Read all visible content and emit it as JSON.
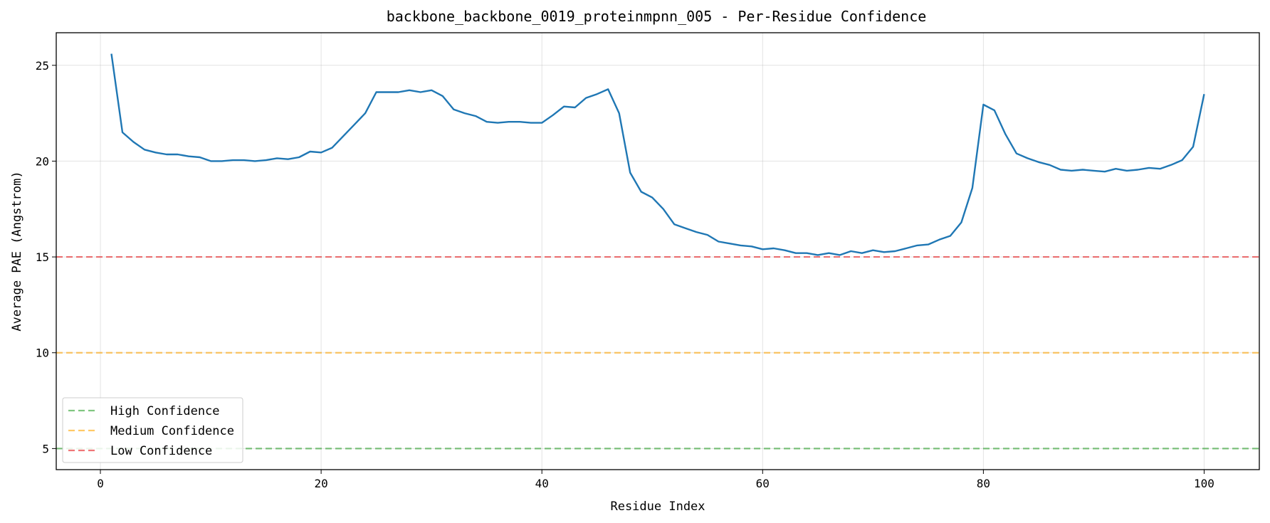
{
  "chart_data": {
    "type": "line",
    "title": "backbone_backbone_0019_proteinmpnn_005 - Per-Residue Confidence",
    "xlabel": "Residue Index",
    "ylabel": "Average PAE (Angstrom)",
    "xlim": [
      -4,
      105
    ],
    "ylim": [
      3.9,
      26.7
    ],
    "xticks": [
      0,
      20,
      40,
      60,
      80,
      100
    ],
    "yticks": [
      5,
      10,
      15,
      20,
      25
    ],
    "grid": true,
    "legend_position": "lower-left",
    "series": [
      {
        "color": "#1f77b4",
        "x": [
          1,
          2,
          3,
          4,
          5,
          6,
          7,
          8,
          9,
          10,
          11,
          12,
          13,
          14,
          15,
          16,
          17,
          18,
          19,
          20,
          21,
          22,
          23,
          24,
          25,
          26,
          27,
          28,
          29,
          30,
          31,
          32,
          33,
          34,
          35,
          36,
          37,
          38,
          39,
          40,
          41,
          42,
          43,
          44,
          45,
          46,
          47,
          48,
          49,
          50,
          51,
          52,
          53,
          54,
          55,
          56,
          57,
          58,
          59,
          60,
          61,
          62,
          63,
          64,
          65,
          66,
          67,
          68,
          69,
          70,
          71,
          72,
          73,
          74,
          75,
          76,
          77,
          78,
          79,
          80,
          81,
          82,
          83,
          84,
          85,
          86,
          87,
          88,
          89,
          90,
          91,
          92,
          93,
          94,
          95,
          96,
          97,
          98,
          99,
          100
        ],
        "y": [
          25.6,
          21.5,
          21.0,
          20.6,
          20.45,
          20.35,
          20.35,
          20.25,
          20.2,
          20.0,
          20.0,
          20.05,
          20.05,
          20.0,
          20.05,
          20.15,
          20.1,
          20.2,
          20.5,
          20.45,
          20.7,
          21.3,
          21.9,
          22.5,
          23.6,
          23.6,
          23.6,
          23.7,
          23.6,
          23.7,
          23.4,
          22.7,
          22.5,
          22.35,
          22.05,
          22.0,
          22.05,
          22.05,
          22.0,
          22.0,
          22.4,
          22.85,
          22.8,
          23.3,
          23.5,
          23.75,
          22.5,
          19.4,
          18.4,
          18.1,
          17.5,
          16.7,
          16.5,
          16.3,
          16.15,
          15.8,
          15.7,
          15.6,
          15.55,
          15.4,
          15.45,
          15.35,
          15.2,
          15.2,
          15.1,
          15.2,
          15.1,
          15.3,
          15.2,
          15.35,
          15.25,
          15.3,
          15.45,
          15.6,
          15.65,
          15.9,
          16.1,
          16.8,
          18.6,
          22.95,
          22.65,
          21.4,
          20.4,
          20.15,
          19.95,
          19.8,
          19.55,
          19.5,
          19.55,
          19.5,
          19.45,
          19.6,
          19.5,
          19.55,
          19.65,
          19.6,
          19.8,
          20.05,
          20.75,
          23.5
        ]
      }
    ],
    "reference_lines": [
      {
        "name": "High Confidence",
        "y": 5,
        "color": "#2ca02c"
      },
      {
        "name": "Medium Confidence",
        "y": 10,
        "color": "#ffa500"
      },
      {
        "name": "Low Confidence",
        "y": 15,
        "color": "#e41a1c"
      }
    ]
  }
}
